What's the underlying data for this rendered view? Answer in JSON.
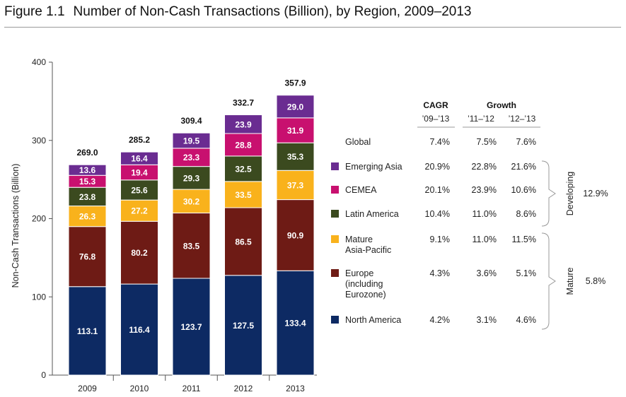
{
  "figure": {
    "number": "Figure 1.1",
    "title": "Number of Non-Cash Transactions (Billion), by Region, 2009–2013"
  },
  "colors": {
    "north_america": "#0d2a63",
    "europe": "#6e1b15",
    "mature_apac": "#f9b21c",
    "latin_america": "#3b4a1f",
    "cemea": "#c8106f",
    "emerging_asia": "#6a2c91"
  },
  "chart_data": {
    "type": "bar",
    "stacked": true,
    "ylabel": "Non-Cash Transactions (Billion)",
    "xlabel": "",
    "ylim": [
      0,
      400
    ],
    "yticks": [
      0,
      100,
      200,
      300,
      400
    ],
    "categories": [
      "2009",
      "2010",
      "2011",
      "2012",
      "2013"
    ],
    "totals": [
      "269.0",
      "285.2",
      "309.4",
      "332.7",
      "357.9"
    ],
    "series": [
      {
        "name": "North America",
        "color_key": "north_america",
        "values": [
          113.1,
          116.4,
          123.7,
          127.5,
          133.4
        ],
        "labels": [
          "113.1",
          "116.4",
          "123.7",
          "127.5",
          "133.4"
        ]
      },
      {
        "name": "Europe (including Eurozone)",
        "color_key": "europe",
        "values": [
          76.8,
          80.2,
          83.5,
          86.5,
          90.9
        ],
        "labels": [
          "76.8",
          "80.2",
          "83.5",
          "86.5",
          "90.9"
        ]
      },
      {
        "name": "Mature Asia-Pacific",
        "color_key": "mature_apac",
        "values": [
          26.3,
          27.2,
          30.2,
          33.5,
          37.3
        ],
        "labels": [
          "26.3",
          "27.2",
          "30.2",
          "33.5",
          "37.3"
        ]
      },
      {
        "name": "Latin America",
        "color_key": "latin_america",
        "values": [
          23.8,
          25.6,
          29.3,
          32.5,
          35.3
        ],
        "labels": [
          "23.8",
          "25.6",
          "29.3",
          "32.5",
          "35.3"
        ]
      },
      {
        "name": "CEMEA",
        "color_key": "cemea",
        "values": [
          15.3,
          19.4,
          23.3,
          28.8,
          31.9
        ],
        "labels": [
          "15.3",
          "19.4",
          "23.3",
          "28.8",
          "31.9"
        ]
      },
      {
        "name": "Emerging Asia",
        "color_key": "emerging_asia",
        "values": [
          13.6,
          16.4,
          19.5,
          23.9,
          29.0
        ],
        "labels": [
          "13.6",
          "16.4",
          "19.5",
          "23.9",
          "29.0"
        ]
      }
    ],
    "table": {
      "headers": {
        "cagr": "CAGR",
        "cagr_sub": "’09–’13",
        "growth": "Growth",
        "growth_sub1": "’11–’12",
        "growth_sub2": "’12–’13"
      },
      "rows": [
        {
          "label": [
            "Global"
          ],
          "color_key": "",
          "cagr": "7.4%",
          "g1": "7.5%",
          "g2": "7.6%"
        },
        {
          "label": [
            "Emerging Asia"
          ],
          "color_key": "emerging_asia",
          "cagr": "20.9%",
          "g1": "22.8%",
          "g2": "21.6%"
        },
        {
          "label": [
            "CEMEA"
          ],
          "color_key": "cemea",
          "cagr": "20.1%",
          "g1": "23.9%",
          "g2": "10.6%"
        },
        {
          "label": [
            "Latin America"
          ],
          "color_key": "latin_america",
          "cagr": "10.4%",
          "g1": "11.0%",
          "g2": "8.6%"
        },
        {
          "label": [
            "Mature",
            "Asia-Pacific"
          ],
          "color_key": "mature_apac",
          "cagr": "9.1%",
          "g1": "11.0%",
          "g2": "11.5%"
        },
        {
          "label": [
            "Europe",
            "(including",
            "Eurozone)"
          ],
          "color_key": "europe",
          "cagr": "4.3%",
          "g1": "3.6%",
          "g2": "5.1%"
        },
        {
          "label": [
            "North America"
          ],
          "color_key": "north_america",
          "cagr": "4.2%",
          "g1": "3.1%",
          "g2": "4.6%"
        }
      ]
    },
    "groups": [
      {
        "name": "Developing",
        "cagr": "12.9%",
        "from_row": 1,
        "to_row": 3
      },
      {
        "name": "Mature",
        "cagr": "5.8%",
        "from_row": 4,
        "to_row": 6
      }
    ]
  }
}
